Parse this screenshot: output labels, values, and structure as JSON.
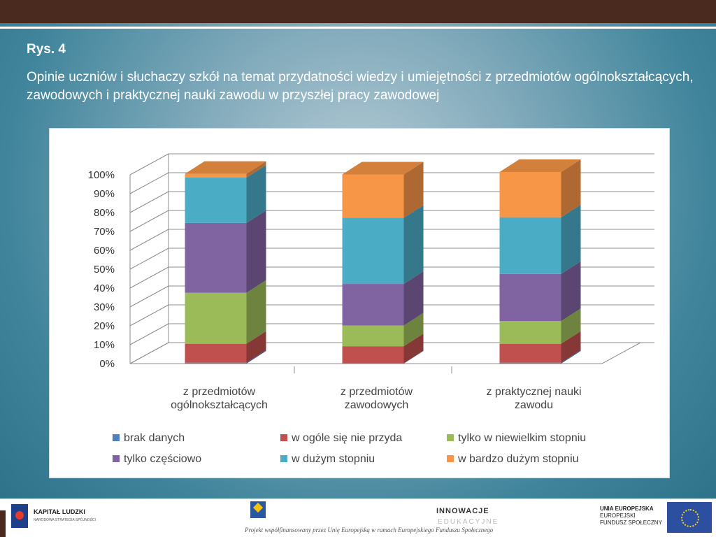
{
  "header": {
    "figure_label": "Rys. 4",
    "subtitle": "Opinie uczniów i słuchaczy szkół na temat przydatności wiedzy i umiejętności z przedmiotów ogólnokształcących, zawodowych i praktycznej nauki zawodu w przyszłej pracy zawodowej"
  },
  "colors": {
    "brak danych": "#4f81bd",
    "w ogóle się nie przyda": "#c0504d",
    "tylko w niewielkim stopniu": "#9bbb59",
    "tylko częściowo": "#8064a2",
    "w dużym stopniu": "#4bacc6",
    "w bardzo dużym stopniu": "#f79646"
  },
  "chart_data": {
    "type": "bar",
    "stacked": true,
    "three_d": true,
    "categories": [
      [
        "z przedmiotów",
        "ogólnokształcących"
      ],
      [
        "z przedmiotów",
        "zawodowych"
      ],
      [
        "z praktycznej nauki",
        "zawodu"
      ]
    ],
    "series": [
      {
        "name": "brak danych",
        "values": [
          0.5,
          0.2,
          0.5
        ]
      },
      {
        "name": "w ogóle się nie przyda",
        "values": [
          10,
          9,
          10
        ]
      },
      {
        "name": "tylko w niewielkim stopniu",
        "values": [
          27,
          11,
          12
        ]
      },
      {
        "name": "tylko częściowo",
        "values": [
          37,
          22,
          25
        ]
      },
      {
        "name": "w dużym stopniu",
        "values": [
          24,
          35,
          30
        ]
      },
      {
        "name": "w bardzo dużym stopniu",
        "values": [
          2,
          23,
          24
        ]
      }
    ],
    "ylim": [
      0,
      100
    ],
    "yticks": [
      "0%",
      "10%",
      "20%",
      "30%",
      "40%",
      "50%",
      "60%",
      "70%",
      "80%",
      "90%",
      "100%"
    ],
    "legend_position": "bottom",
    "legend_rows": [
      [
        "brak danych",
        "w ogóle się nie przyda",
        "tylko w niewielkim stopniu"
      ],
      [
        "tylko częściowo",
        "w dużym stopniu",
        "w bardzo dużym stopniu"
      ]
    ],
    "grid": true
  },
  "footer": {
    "kapital_title": "KAPITAŁ LUDZKI",
    "kapital_sub": "NARODOWA STRATEGIA SPÓJNOŚCI",
    "innowacje_1": "INNOWACJE",
    "innowacje_2": "EDUKACYJNE",
    "project_note": "Projekt współfinansowany przez Unię Europejską w ramach Europejskiego Funduszu Społecznego",
    "ue_title": "UNIA EUROPEJSKA",
    "ue_line2": "EUROPEJSKI",
    "ue_line3": "FUNDUSZ SPOŁECZNY"
  }
}
